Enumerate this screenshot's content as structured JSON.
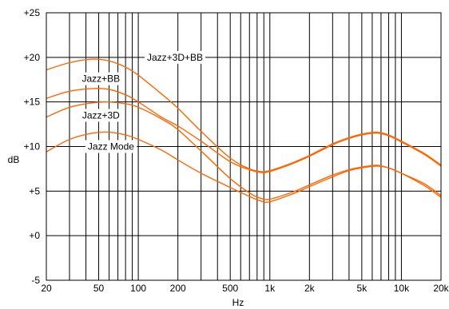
{
  "chart_data": {
    "type": "line",
    "title": "",
    "xlabel": "Hz",
    "ylabel": "dB",
    "x_scale": "log",
    "xlim": [
      20,
      20000
    ],
    "ylim": [
      -5,
      25
    ],
    "grid": true,
    "x_tick_values": [
      20,
      50,
      100,
      200,
      500,
      1000,
      2000,
      5000,
      10000,
      20000
    ],
    "x_tick_labels": [
      "20",
      "50",
      "100",
      "200",
      "500",
      "1k",
      "2k",
      "5k",
      "10k",
      "20k"
    ],
    "y_tick_values": [
      -5,
      0,
      5,
      10,
      15,
      20,
      25
    ],
    "y_tick_labels": [
      "-5",
      "+0",
      "+5",
      "+10",
      "+15",
      "+20",
      "+25"
    ],
    "line_color": "#ff6600",
    "grid_color": "#000000",
    "x": [
      20,
      30,
      45,
      60,
      80,
      100,
      150,
      200,
      300,
      500,
      700,
      850,
      1000,
      1500,
      2000,
      3000,
      4000,
      5000,
      6500,
      8000,
      10000,
      15000,
      20000
    ],
    "series": [
      {
        "name": "Jazz+3D+BB",
        "values": [
          18.6,
          19.4,
          19.8,
          19.6,
          18.9,
          18.0,
          15.9,
          14.3,
          11.7,
          8.7,
          7.5,
          7.2,
          7.3,
          8.2,
          9.0,
          10.3,
          11.0,
          11.4,
          11.6,
          11.3,
          10.6,
          9.2,
          7.9
        ]
      },
      {
        "name": "Jazz+BB",
        "values": [
          15.4,
          16.2,
          16.5,
          16.4,
          15.8,
          15.0,
          13.3,
          12.3,
          10.6,
          8.3,
          7.4,
          7.1,
          7.2,
          8.1,
          8.9,
          10.2,
          10.9,
          11.3,
          11.5,
          11.2,
          10.5,
          9.1,
          7.8
        ]
      },
      {
        "name": "Jazz+3D",
        "values": [
          13.3,
          14.4,
          14.9,
          15.0,
          14.8,
          14.4,
          13.1,
          11.9,
          9.5,
          6.4,
          4.8,
          4.2,
          4.1,
          4.9,
          5.7,
          6.8,
          7.4,
          7.7,
          7.9,
          7.6,
          7.0,
          5.6,
          4.3
        ]
      },
      {
        "name": "Jazz Mode",
        "values": [
          9.4,
          10.8,
          11.5,
          11.6,
          11.3,
          10.8,
          9.6,
          8.5,
          7.0,
          5.4,
          4.4,
          3.9,
          3.8,
          4.7,
          5.5,
          6.6,
          7.3,
          7.6,
          7.8,
          7.6,
          7.0,
          5.8,
          4.5
        ]
      }
    ],
    "curve_labels": [
      {
        "text": "Jazz+3D+BB",
        "x": 190,
        "y": 20.0
      },
      {
        "text": "Jazz+BB",
        "x": 52,
        "y": 17.6
      },
      {
        "text": "Jazz+3D",
        "x": 52,
        "y": 13.5
      },
      {
        "text": "Jazz Mode",
        "x": 62,
        "y": 10.0
      }
    ]
  }
}
